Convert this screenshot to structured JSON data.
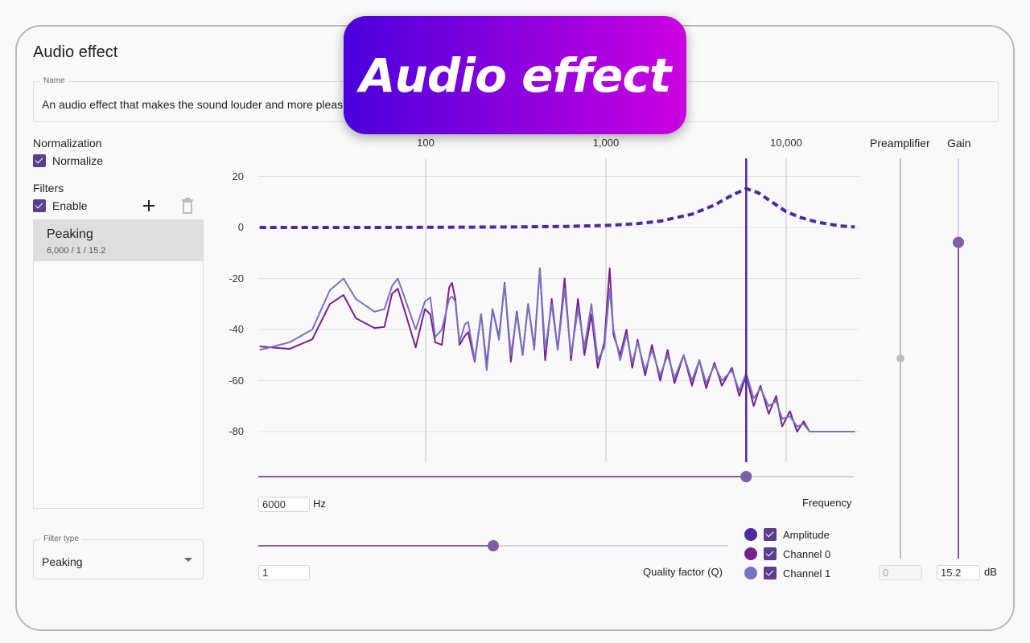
{
  "banner": {
    "text": "Audio effect"
  },
  "title": "Audio effect",
  "name_field": {
    "label": "Name",
    "value": "An audio effect that makes the sound louder and more pleas"
  },
  "normalization": {
    "heading": "Normalization",
    "checkbox_label": "Normalize",
    "checked": true
  },
  "filters": {
    "heading": "Filters",
    "enable_label": "Enable",
    "enabled": true,
    "add_icon": "plus-icon",
    "delete_icon": "trash-icon",
    "items": [
      {
        "name": "Peaking",
        "summary": "6,000 / 1 / 15.2",
        "selected": true
      }
    ]
  },
  "filter_type": {
    "label": "Filter type",
    "value": "Peaking"
  },
  "frequency": {
    "value": "6000",
    "unit": "Hz",
    "label": "Frequency",
    "slider_hz": 6000
  },
  "quality": {
    "value": "1",
    "label": "Quality factor (Q)",
    "slider_fraction": 0.5
  },
  "preamplifier": {
    "label": "Preamplifier",
    "value": "0",
    "disabled": true,
    "slider_fraction": 0.5
  },
  "gain": {
    "label": "Gain",
    "value": "15.2",
    "unit": "dB",
    "slider_fraction": 0.79
  },
  "legend": [
    {
      "name": "Amplitude",
      "color": "#4a2aa0",
      "checked": true
    },
    {
      "name": "Channel 0",
      "color": "#7b1f8f",
      "checked": true
    },
    {
      "name": "Channel 1",
      "color": "#7873bd",
      "checked": true
    }
  ],
  "colors": {
    "accent": "#7b5fa8",
    "amplitude": "#4a2aa0",
    "channel0": "#7b1f8f",
    "channel1": "#7873bd"
  },
  "chart_data": {
    "type": "line",
    "x_scale": "log",
    "xlim": [
      12,
      24000
    ],
    "ylim": [
      -90,
      20
    ],
    "x_ticks": [
      "100",
      "1,000",
      "10,000"
    ],
    "x_tick_values": [
      100,
      1000,
      10000
    ],
    "y_ticks": [
      "20",
      "0",
      "-20",
      "-40",
      "-60",
      "-80"
    ],
    "y_tick_values": [
      20,
      0,
      -20,
      -40,
      -60,
      -80
    ],
    "grid": true,
    "marker_line_hz": 6000,
    "amplitude": {
      "style": "dashed",
      "x": [
        12,
        50,
        100,
        300,
        600,
        1000,
        1500,
        2000,
        3000,
        4000,
        5000,
        6000,
        7000,
        8000,
        10000,
        12000,
        15000,
        20000,
        24000
      ],
      "y": [
        0,
        0,
        0.05,
        0.2,
        0.4,
        0.8,
        1.5,
        2.5,
        5.2,
        8.8,
        12.6,
        15.2,
        13.6,
        10.8,
        6.2,
        3.9,
        2,
        0.6,
        0.2
      ]
    },
    "x": [
      12,
      17.6,
      23.5,
      29.4,
      35,
      41,
      52,
      59,
      65,
      70,
      76,
      88,
      99,
      106,
      113,
      123,
      135,
      140,
      146,
      154,
      165,
      172,
      187,
      203,
      218,
      235,
      255,
      274,
      297,
      320,
      345,
      370,
      400,
      430,
      460,
      500,
      540,
      590,
      640,
      700,
      760,
      830,
      900,
      980,
      1050,
      1100,
      1200,
      1300,
      1400,
      1500,
      1650,
      1800,
      2000,
      2200,
      2400,
      2700,
      3000,
      3300,
      3600,
      4000,
      4400,
      5000,
      5500,
      6000,
      6600,
      7200,
      8000,
      8800,
      9500,
      10500,
      11500,
      12500,
      13500,
      15000,
      24000
    ],
    "series": [
      {
        "name": "Channel 0",
        "values": [
          -46.6,
          -47.6,
          -43.8,
          -30,
          -26.5,
          -35.6,
          -39.4,
          -39,
          -26,
          -24,
          -32,
          -47,
          -32,
          -34,
          -45,
          -46,
          -23.6,
          -21.7,
          -28,
          -46,
          -42.5,
          -41,
          -52.6,
          -34,
          -54,
          -32,
          -43,
          -21.7,
          -52.6,
          -33,
          -50,
          -30,
          -47,
          -16,
          -52,
          -28,
          -48,
          -20,
          -52,
          -28,
          -50,
          -34,
          -55,
          -45,
          -16,
          -42,
          -50,
          -40,
          -55,
          -44,
          -58,
          -46,
          -60,
          -48,
          -61,
          -50,
          -62,
          -52,
          -63,
          -53,
          -62,
          -55,
          -66,
          -58,
          -70,
          -62,
          -73,
          -66,
          -78,
          -72,
          -80,
          -76,
          -80,
          -80,
          -80
        ]
      },
      {
        "name": "Channel 1",
        "values": [
          -48,
          -45,
          -40,
          -24.6,
          -20,
          -28,
          -33,
          -32,
          -23,
          -20,
          -27,
          -40,
          -29,
          -27.4,
          -43,
          -40,
          -28,
          -27,
          -29,
          -45,
          -38,
          -37,
          -52,
          -34,
          -56,
          -32,
          -44,
          -22,
          -50,
          -34,
          -50,
          -30,
          -48,
          -16,
          -48,
          -30,
          -48,
          -24,
          -50,
          -32,
          -47,
          -30,
          -52,
          -47,
          -24,
          -40,
          -52,
          -42,
          -53,
          -45,
          -56,
          -48,
          -58,
          -50,
          -59,
          -50,
          -60,
          -52,
          -61,
          -54,
          -60,
          -56,
          -64,
          -57,
          -67,
          -63,
          -70,
          -68,
          -75,
          -74,
          -78,
          -77,
          -80,
          -80,
          -80
        ]
      }
    ]
  }
}
